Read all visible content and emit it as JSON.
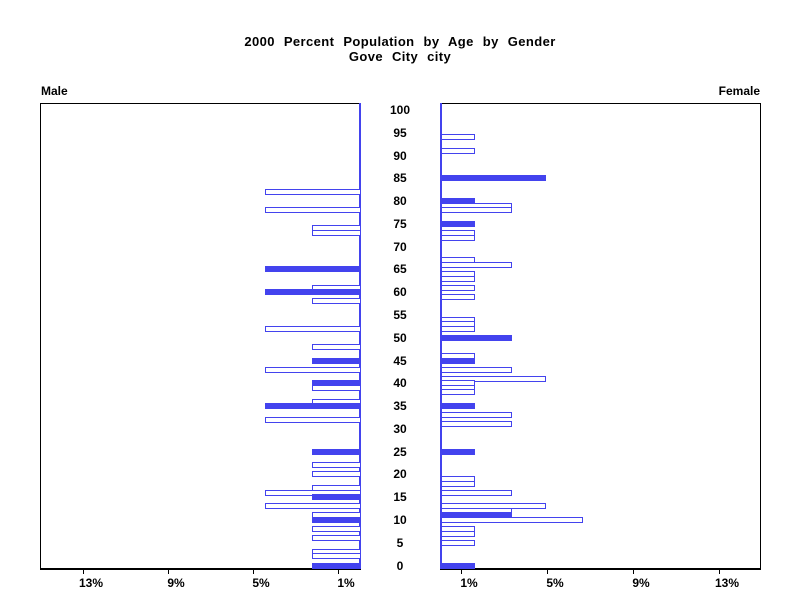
{
  "title": {
    "line1": "2000 Percent Population by Age by Gender",
    "line2": "Gove City city"
  },
  "side_labels": {
    "left": "Male",
    "right": "Female"
  },
  "colors": {
    "bar_blue": "#4343ee",
    "axis_black": "#000000",
    "background": "#ffffff"
  },
  "chart_data": {
    "type": "bar",
    "subtype": "population-pyramid",
    "title": "2000 Percent Population by Age by Gender",
    "subtitle": "Gove City city",
    "value_unit": "percent of population by single year of age",
    "age_axis": {
      "min": 0,
      "max": 100,
      "step": 5,
      "labels": [
        "0",
        "5",
        "10",
        "15",
        "20",
        "25",
        "30",
        "35",
        "40",
        "45",
        "50",
        "55",
        "60",
        "65",
        "70",
        "75",
        "80",
        "85",
        "90",
        "95",
        "100"
      ]
    },
    "x_axis": {
      "tick_values_pct": [
        1,
        5,
        9,
        13
      ],
      "male_labels": [
        "13%",
        "9%",
        "5%",
        "1%"
      ],
      "female_labels": [
        "1%",
        "5%",
        "9%",
        "13%"
      ],
      "max_pct": 15
    },
    "legend": {
      "solid_fill": "highlighted age bar",
      "hollow_fill": "outlined age bar"
    },
    "male": [
      {
        "age": 82,
        "pct": 4.5,
        "solid": false
      },
      {
        "age": 78,
        "pct": 4.5,
        "solid": false
      },
      {
        "age": 74,
        "pct": 2.3,
        "solid": false
      },
      {
        "age": 73,
        "pct": 2.3,
        "solid": false
      },
      {
        "age": 65,
        "pct": 4.5,
        "solid": true
      },
      {
        "age": 61,
        "pct": 2.3,
        "solid": false
      },
      {
        "age": 60,
        "pct": 4.5,
        "solid": true
      },
      {
        "age": 58,
        "pct": 2.3,
        "solid": false
      },
      {
        "age": 52,
        "pct": 4.5,
        "solid": false
      },
      {
        "age": 48,
        "pct": 2.3,
        "solid": false
      },
      {
        "age": 45,
        "pct": 2.3,
        "solid": true
      },
      {
        "age": 43,
        "pct": 4.5,
        "solid": false
      },
      {
        "age": 40,
        "pct": 2.3,
        "solid": true
      },
      {
        "age": 39,
        "pct": 2.3,
        "solid": false
      },
      {
        "age": 36,
        "pct": 2.3,
        "solid": false
      },
      {
        "age": 35,
        "pct": 4.5,
        "solid": true
      },
      {
        "age": 32,
        "pct": 4.5,
        "solid": false
      },
      {
        "age": 25,
        "pct": 2.3,
        "solid": true
      },
      {
        "age": 22,
        "pct": 2.3,
        "solid": false
      },
      {
        "age": 20,
        "pct": 2.3,
        "solid": false
      },
      {
        "age": 17,
        "pct": 2.3,
        "solid": false
      },
      {
        "age": 16,
        "pct": 4.5,
        "solid": false
      },
      {
        "age": 15,
        "pct": 2.3,
        "solid": true
      },
      {
        "age": 13,
        "pct": 4.5,
        "solid": false
      },
      {
        "age": 11,
        "pct": 2.3,
        "solid": false
      },
      {
        "age": 10,
        "pct": 2.3,
        "solid": true
      },
      {
        "age": 8,
        "pct": 2.3,
        "solid": false
      },
      {
        "age": 6,
        "pct": 2.3,
        "solid": false
      },
      {
        "age": 3,
        "pct": 2.3,
        "solid": false
      },
      {
        "age": 2,
        "pct": 2.3,
        "solid": false
      },
      {
        "age": 0,
        "pct": 2.3,
        "solid": true
      }
    ],
    "female": [
      {
        "age": 94,
        "pct": 1.6,
        "solid": false
      },
      {
        "age": 91,
        "pct": 1.6,
        "solid": false
      },
      {
        "age": 85,
        "pct": 4.9,
        "solid": true
      },
      {
        "age": 80,
        "pct": 1.6,
        "solid": true
      },
      {
        "age": 79,
        "pct": 3.3,
        "solid": false
      },
      {
        "age": 78,
        "pct": 3.3,
        "solid": false
      },
      {
        "age": 75,
        "pct": 1.6,
        "solid": true
      },
      {
        "age": 73,
        "pct": 1.6,
        "solid": false
      },
      {
        "age": 72,
        "pct": 1.6,
        "solid": false
      },
      {
        "age": 67,
        "pct": 1.6,
        "solid": false
      },
      {
        "age": 66,
        "pct": 3.3,
        "solid": false
      },
      {
        "age": 64,
        "pct": 1.6,
        "solid": false
      },
      {
        "age": 63,
        "pct": 1.6,
        "solid": false
      },
      {
        "age": 61,
        "pct": 1.6,
        "solid": false
      },
      {
        "age": 59,
        "pct": 1.6,
        "solid": false
      },
      {
        "age": 54,
        "pct": 1.6,
        "solid": false
      },
      {
        "age": 53,
        "pct": 1.6,
        "solid": false
      },
      {
        "age": 52,
        "pct": 1.6,
        "solid": false
      },
      {
        "age": 50,
        "pct": 3.3,
        "solid": true
      },
      {
        "age": 46,
        "pct": 1.6,
        "solid": false
      },
      {
        "age": 45,
        "pct": 1.6,
        "solid": true
      },
      {
        "age": 43,
        "pct": 3.3,
        "solid": false
      },
      {
        "age": 41,
        "pct": 4.9,
        "solid": false
      },
      {
        "age": 40,
        "pct": 1.6,
        "solid": false
      },
      {
        "age": 39,
        "pct": 1.6,
        "solid": false
      },
      {
        "age": 38,
        "pct": 1.6,
        "solid": false
      },
      {
        "age": 35,
        "pct": 1.6,
        "solid": true
      },
      {
        "age": 33,
        "pct": 3.3,
        "solid": false
      },
      {
        "age": 31,
        "pct": 3.3,
        "solid": false
      },
      {
        "age": 25,
        "pct": 1.6,
        "solid": true
      },
      {
        "age": 19,
        "pct": 1.6,
        "solid": false
      },
      {
        "age": 18,
        "pct": 1.6,
        "solid": false
      },
      {
        "age": 16,
        "pct": 3.3,
        "solid": false
      },
      {
        "age": 13,
        "pct": 4.9,
        "solid": false
      },
      {
        "age": 12,
        "pct": 3.3,
        "solid": false
      },
      {
        "age": 11,
        "pct": 3.3,
        "solid": true
      },
      {
        "age": 10,
        "pct": 6.6,
        "solid": false
      },
      {
        "age": 8,
        "pct": 1.6,
        "solid": false
      },
      {
        "age": 7,
        "pct": 1.6,
        "solid": false
      },
      {
        "age": 5,
        "pct": 1.6,
        "solid": false
      },
      {
        "age": 0,
        "pct": 1.6,
        "solid": true
      }
    ]
  }
}
